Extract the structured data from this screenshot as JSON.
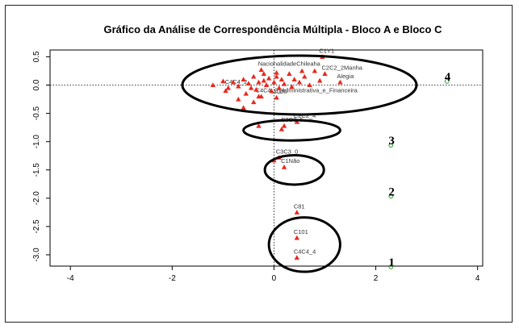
{
  "chart_data": {
    "type": "scatter",
    "title": "Gráfico da Análise de Correspondência Múltipla - Bloco A e Bloco C",
    "xlabel": "",
    "ylabel": "",
    "xlim": [
      -4.4,
      4.1
    ],
    "ylim": [
      -3.2,
      0.62
    ],
    "x_ticks": [
      "-4",
      "-2",
      "0",
      "2",
      "4"
    ],
    "y_ticks": [
      "0.5",
      "0.0",
      "-0.5",
      "-1.0",
      "-1.5",
      "-2.0",
      "-2.5",
      "-3.0"
    ],
    "grid": false,
    "reference_lines": {
      "x": 0,
      "y": 0
    },
    "labeled_points": [
      {
        "label": "C1Y1",
        "x": 0.95,
        "y": 0.5
      },
      {
        "label": "NacionalidadeChileaha",
        "x": -0.25,
        "y": 0.27
      },
      {
        "label": "C2C2_2Manha",
        "x": 1.0,
        "y": 0.2
      },
      {
        "label": "Alegia",
        "x": 1.3,
        "y": 0.05
      },
      {
        "label": "C4C4_2",
        "x": -0.9,
        "y": -0.05
      },
      {
        "label": "C4C4_2_Administrativa_e_Financeira",
        "x": -0.3,
        "y": -0.2
      },
      {
        "label": "1000",
        "x": 0.05,
        "y": -0.22
      },
      {
        "label": "C2C2_4",
        "x": 0.45,
        "y": -0.65
      },
      {
        "label": "C3C3_6",
        "x": 0.2,
        "y": -0.72
      },
      {
        "label": "C3C3_0",
        "x": 0.1,
        "y": -1.28
      },
      {
        "label": "C1Não",
        "x": 0.2,
        "y": -1.45
      },
      {
        "label": "C81",
        "x": 0.45,
        "y": -2.25
      },
      {
        "label": "C101",
        "x": 0.45,
        "y": -2.7
      },
      {
        "label": "C4C4_4",
        "x": 0.45,
        "y": -3.05
      }
    ],
    "unlabeled_points": [
      {
        "x": -1.2,
        "y": 0.0
      },
      {
        "x": -1.0,
        "y": 0.07
      },
      {
        "x": -0.95,
        "y": -0.1
      },
      {
        "x": -0.8,
        "y": 0.05
      },
      {
        "x": -0.7,
        "y": -0.02
      },
      {
        "x": -0.6,
        "y": 0.1
      },
      {
        "x": -0.55,
        "y": -0.15
      },
      {
        "x": -0.5,
        "y": 0.03
      },
      {
        "x": -0.45,
        "y": -0.05
      },
      {
        "x": -0.4,
        "y": 0.15
      },
      {
        "x": -0.35,
        "y": -0.08
      },
      {
        "x": -0.3,
        "y": 0.05
      },
      {
        "x": -0.25,
        "y": -0.2
      },
      {
        "x": -0.2,
        "y": 0.08
      },
      {
        "x": -0.15,
        "y": 0.0
      },
      {
        "x": -0.1,
        "y": 0.12
      },
      {
        "x": -0.05,
        "y": -0.1
      },
      {
        "x": 0.0,
        "y": 0.05
      },
      {
        "x": 0.05,
        "y": 0.15
      },
      {
        "x": 0.1,
        "y": -0.05
      },
      {
        "x": 0.15,
        "y": 0.1
      },
      {
        "x": 0.2,
        "y": 0.02
      },
      {
        "x": 0.3,
        "y": 0.2
      },
      {
        "x": 0.35,
        "y": -0.03
      },
      {
        "x": 0.4,
        "y": 0.1
      },
      {
        "x": 0.5,
        "y": 0.05
      },
      {
        "x": 0.6,
        "y": 0.15
      },
      {
        "x": 0.7,
        "y": 0.0
      },
      {
        "x": 0.8,
        "y": 0.25
      },
      {
        "x": 0.9,
        "y": 0.08
      },
      {
        "x": -0.6,
        "y": -0.4
      },
      {
        "x": -0.7,
        "y": -0.25
      },
      {
        "x": -0.4,
        "y": -0.3
      },
      {
        "x": -0.3,
        "y": -0.72
      },
      {
        "x": 0.15,
        "y": -0.78
      },
      {
        "x": 0.0,
        "y": -1.33
      },
      {
        "x": 0.05,
        "y": 0.22
      },
      {
        "x": 0.55,
        "y": 0.25
      },
      {
        "x": -0.2,
        "y": 0.2
      }
    ],
    "clusters": [
      {
        "label": "4",
        "cx": 0.5,
        "cy": 0.0,
        "rx": 2.3,
        "ry": 0.52,
        "label_x": 3.35,
        "label_y": 0.08
      },
      {
        "label": "3",
        "cx": 0.35,
        "cy": -0.8,
        "rx": 0.95,
        "ry": 0.18,
        "label_x": 2.25,
        "label_y": -1.05
      },
      {
        "label": "2",
        "cx": 0.4,
        "cy": -1.5,
        "rx": 0.58,
        "ry": 0.26,
        "label_x": 2.25,
        "label_y": -1.95
      },
      {
        "label": "1",
        "cx": 0.6,
        "cy": -2.82,
        "rx": 0.7,
        "ry": 0.48,
        "label_x": 2.25,
        "label_y": -3.2
      }
    ],
    "colors": {
      "point": "#e8281e",
      "ellipse": "#000000",
      "axis": "#000000",
      "marker_green": "#2aa02a"
    }
  }
}
